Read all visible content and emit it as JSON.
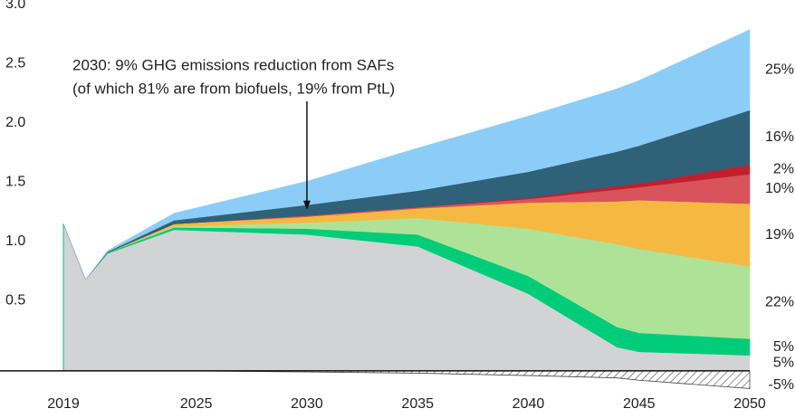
{
  "chart_data": {
    "type": "stacked_area",
    "x": [
      2019,
      2020,
      2021,
      2024,
      2030,
      2035,
      2040,
      2044,
      2045,
      2050
    ],
    "xlim": [
      2019,
      2050
    ],
    "xticks": [
      2019,
      2025,
      2030,
      2035,
      2040,
      2045,
      2050
    ],
    "ylim": [
      -0.2,
      3.0
    ],
    "yticks": [
      0.5,
      {
        "value": 1,
        "label": "1.0"
      },
      1.5,
      {
        "value": 2,
        "label": "2.0"
      },
      2.5,
      {
        "value": 3,
        "label": "3.0"
      }
    ],
    "grid": true,
    "series": [
      {
        "label": "5%",
        "color": "#d1d3d4",
        "values": [
          1.24,
          0.77,
          0.99,
          1.19,
          1.15,
          1.05,
          0.65,
          0.2,
          0.16,
          0.13
        ]
      },
      {
        "label": "5%",
        "color": "#00cc7a",
        "values": [
          0,
          0,
          0.01,
          0.02,
          0.05,
          0.1,
          0.15,
          0.17,
          0.16,
          0.14
        ]
      },
      {
        "label": "22%",
        "color": "#aee397",
        "values": [
          0,
          0,
          0,
          0.01,
          0.05,
          0.14,
          0.4,
          0.7,
          0.71,
          0.61
        ]
      },
      {
        "label": "19%",
        "color": "#f5b942",
        "values": [
          0,
          0,
          0,
          0.02,
          0.05,
          0.08,
          0.22,
          0.36,
          0.41,
          0.53
        ]
      },
      {
        "label": "10%",
        "color": "#d9545a",
        "values": [
          0,
          0,
          0,
          0,
          0.01,
          0.01,
          0.03,
          0.1,
          0.11,
          0.25
        ]
      },
      {
        "label": "2%",
        "color": "#c0202d",
        "values": [
          0,
          0,
          0,
          0,
          0,
          0,
          0.01,
          0.03,
          0.03,
          0.08
        ]
      },
      {
        "label": "16%",
        "color": "#2f6179",
        "values": [
          0,
          0,
          0.005,
          0.03,
          0.09,
          0.14,
          0.22,
          0.29,
          0.32,
          0.46
        ]
      },
      {
        "label": "25%",
        "color": "#8ccdf7",
        "values": [
          0,
          0,
          0.01,
          0.06,
          0.2,
          0.36,
          0.47,
          0.53,
          0.55,
          0.68
        ]
      }
    ],
    "negative_series": {
      "label": "-5%",
      "color": "#444444",
      "values": [
        0,
        0,
        0,
        0,
        -0.01,
        -0.02,
        -0.04,
        -0.06,
        -0.08,
        -0.15
      ]
    },
    "annotation": {
      "lines": [
        "2030: 9% GHG emissions reduction from SAFs",
        "(of which 81% are from biofuels, 19% from PtL)"
      ],
      "x": 2030,
      "y": 1.36
    }
  }
}
